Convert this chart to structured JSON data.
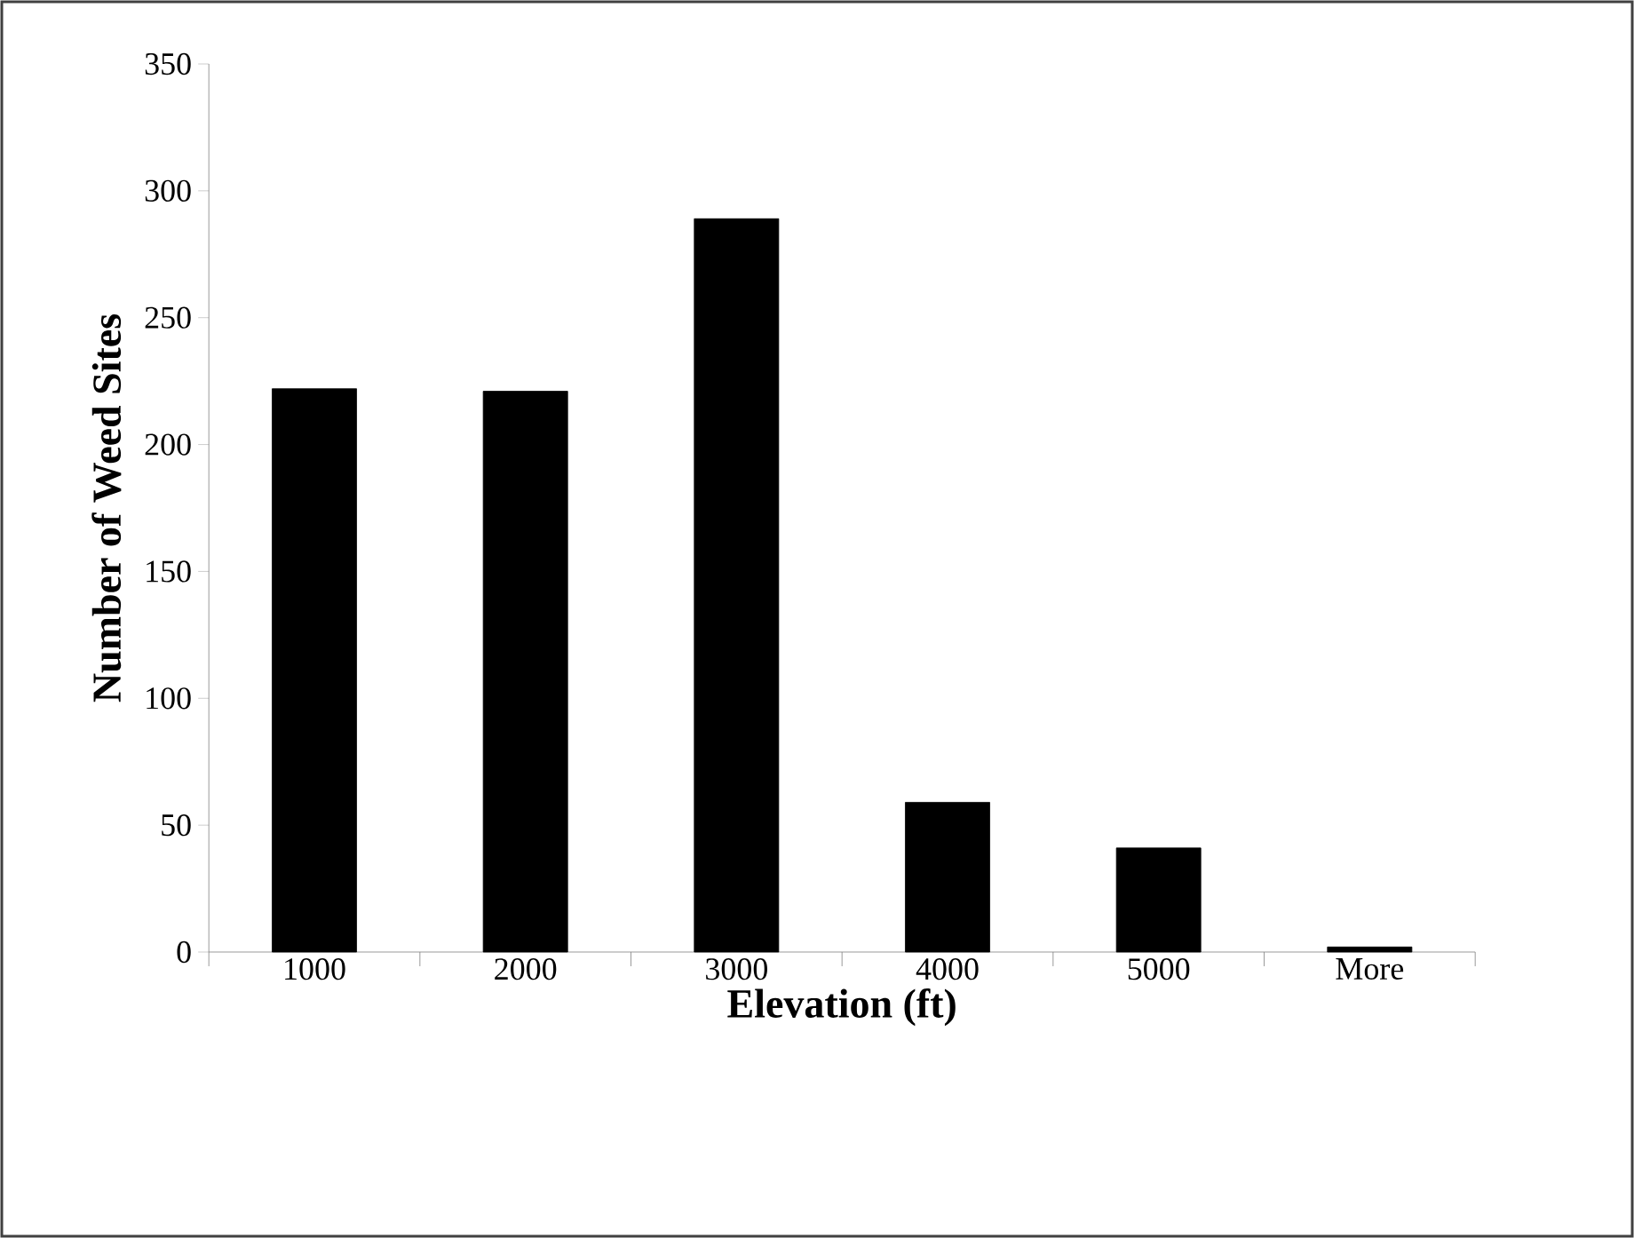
{
  "chart_data": {
    "type": "bar",
    "xlabel": "Elevation (ft)",
    "ylabel": "Number of Weed Sites",
    "categories": [
      "1000",
      "2000",
      "3000",
      "4000",
      "5000",
      "More"
    ],
    "values": [
      222,
      221,
      289,
      59,
      41,
      2
    ],
    "color": "#000000",
    "ylim": [
      0,
      350
    ],
    "yticks": [
      0,
      50,
      100,
      150,
      200,
      250,
      300,
      350
    ]
  }
}
